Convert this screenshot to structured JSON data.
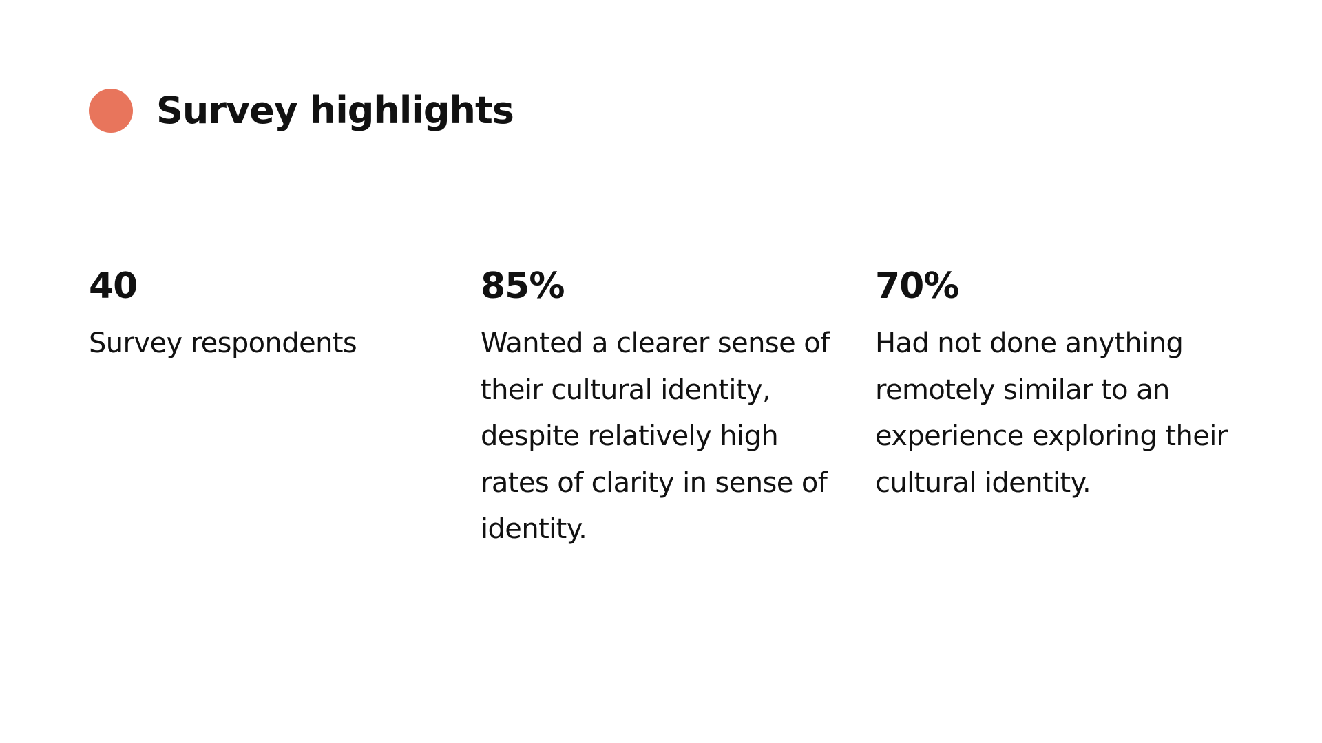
{
  "slide": {
    "title": "Survey highlights",
    "accent_color": "#E8755C",
    "stats": [
      {
        "value": "40",
        "description": "Survey respondents"
      },
      {
        "value": "85%",
        "description": "Wanted a clearer sense of their cultural identity, despite relatively high rates of clarity in sense of identity."
      },
      {
        "value": "70%",
        "description": "Had not done anything remotely similar to an experience exploring their cultural identity."
      }
    ]
  }
}
